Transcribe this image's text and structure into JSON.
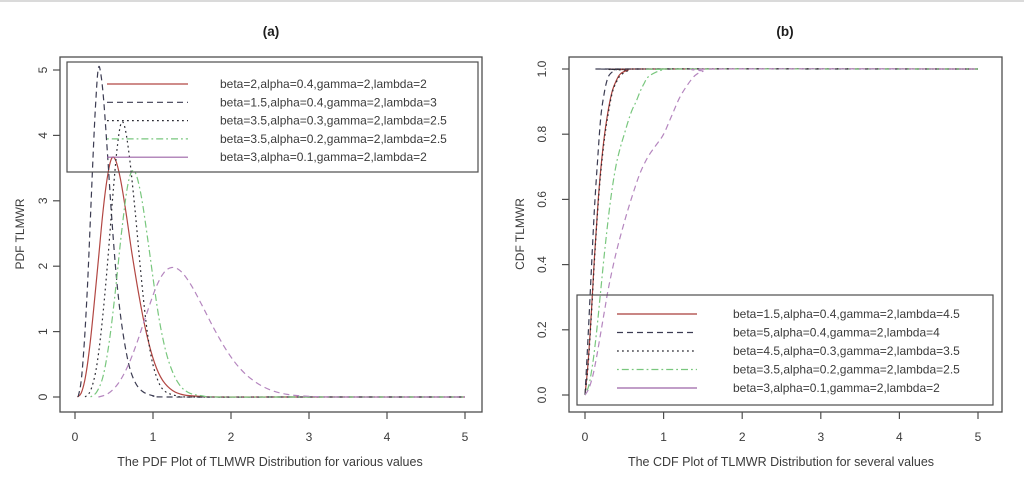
{
  "style": {
    "background": "#ffffff",
    "frame_color": "#4e4e4e",
    "text_color": "#3b3b3b",
    "title_color": "#1d1d1d",
    "top_strip_color": "#dadada"
  },
  "chart_data": [
    {
      "id": "pdf",
      "type": "line",
      "title": "(a)",
      "xlabel": "The PDF Plot of TLMWR Distribution for various values",
      "ylabel": "PDF TLMWR",
      "xlim": [
        0,
        5
      ],
      "ylim": [
        0,
        5.1
      ],
      "x_ticks": [
        0,
        1,
        2,
        3,
        4,
        5
      ],
      "x_tick_labels": [
        "0",
        "1",
        "2",
        "3",
        "4",
        "5"
      ],
      "y_ticks": [
        0,
        1,
        2,
        3,
        4,
        5
      ],
      "y_tick_labels": [
        "0",
        "1",
        "2",
        "3",
        "4",
        "5"
      ],
      "grid": false,
      "legend_position": "top",
      "series": [
        {
          "label": "beta=2,alpha=0.4,gamma=2,lambda=2",
          "color": "#b24743",
          "line_style": "solid",
          "points": [
            [
              0.03,
              0
            ],
            [
              0.08,
              0.06
            ],
            [
              0.13,
              0.28
            ],
            [
              0.18,
              0.68
            ],
            [
              0.24,
              1.35
            ],
            [
              0.3,
              2.1
            ],
            [
              0.36,
              2.85
            ],
            [
              0.42,
              3.4
            ],
            [
              0.47,
              3.65
            ],
            [
              0.52,
              3.62
            ],
            [
              0.58,
              3.35
            ],
            [
              0.65,
              2.85
            ],
            [
              0.73,
              2.2
            ],
            [
              0.82,
              1.55
            ],
            [
              0.92,
              0.95
            ],
            [
              1.02,
              0.52
            ],
            [
              1.12,
              0.26
            ],
            [
              1.25,
              0.1
            ],
            [
              1.4,
              0.03
            ],
            [
              1.6,
              0.01
            ],
            [
              1.85,
              0
            ],
            [
              3.0,
              0
            ],
            [
              5.0,
              0
            ]
          ]
        },
        {
          "label": "beta=1.5,alpha=0.4,gamma=2,lambda=3",
          "color": "#3c3c52",
          "line_style": "dashed",
          "points": [
            [
              0.04,
              0
            ],
            [
              0.08,
              0.25
            ],
            [
              0.12,
              0.85
            ],
            [
              0.16,
              1.7
            ],
            [
              0.2,
              2.8
            ],
            [
              0.24,
              3.9
            ],
            [
              0.27,
              4.6
            ],
            [
              0.3,
              5.03
            ],
            [
              0.33,
              4.95
            ],
            [
              0.37,
              4.5
            ],
            [
              0.42,
              3.65
            ],
            [
              0.47,
              2.75
            ],
            [
              0.53,
              1.85
            ],
            [
              0.6,
              1.1
            ],
            [
              0.68,
              0.55
            ],
            [
              0.76,
              0.25
            ],
            [
              0.86,
              0.09
            ],
            [
              1.0,
              0.02
            ],
            [
              1.2,
              0
            ],
            [
              3.0,
              0
            ],
            [
              5.0,
              0
            ]
          ]
        },
        {
          "label": "beta=3.5,alpha=0.3,gamma=2,lambda=2.5",
          "color": "#2b2b33",
          "line_style": "dotted",
          "points": [
            [
              0.13,
              0
            ],
            [
              0.2,
              0.1
            ],
            [
              0.27,
              0.42
            ],
            [
              0.34,
              1.05
            ],
            [
              0.41,
              1.95
            ],
            [
              0.48,
              3.0
            ],
            [
              0.54,
              3.8
            ],
            [
              0.59,
              4.18
            ],
            [
              0.64,
              4.12
            ],
            [
              0.7,
              3.65
            ],
            [
              0.77,
              2.85
            ],
            [
              0.84,
              1.95
            ],
            [
              0.91,
              1.15
            ],
            [
              0.98,
              0.6
            ],
            [
              1.06,
              0.26
            ],
            [
              1.15,
              0.09
            ],
            [
              1.3,
              0.02
            ],
            [
              1.5,
              0
            ],
            [
              3.0,
              0
            ],
            [
              5.0,
              0
            ]
          ]
        },
        {
          "label": "beta=3.5,alpha=0.2,gamma=2,lambda=2.5",
          "color": "#79c77e",
          "line_style": "dashdot",
          "points": [
            [
              0.2,
              0
            ],
            [
              0.28,
              0.08
            ],
            [
              0.36,
              0.32
            ],
            [
              0.44,
              0.85
            ],
            [
              0.52,
              1.65
            ],
            [
              0.6,
              2.55
            ],
            [
              0.67,
              3.2
            ],
            [
              0.73,
              3.45
            ],
            [
              0.79,
              3.38
            ],
            [
              0.86,
              3.0
            ],
            [
              0.94,
              2.35
            ],
            [
              1.02,
              1.65
            ],
            [
              1.1,
              1.05
            ],
            [
              1.2,
              0.55
            ],
            [
              1.32,
              0.22
            ],
            [
              1.45,
              0.07
            ],
            [
              1.62,
              0.02
            ],
            [
              1.85,
              0
            ],
            [
              3.0,
              0
            ],
            [
              5.0,
              0
            ]
          ]
        },
        {
          "label": "beta=3,alpha=0.1,gamma=2,lambda=2",
          "color": "#b586bf",
          "line_style": "dashed",
          "legend_line_style": "solid",
          "legend_color": "#9c63a6",
          "points": [
            [
              0.3,
              0
            ],
            [
              0.42,
              0.05
            ],
            [
              0.55,
              0.2
            ],
            [
              0.68,
              0.48
            ],
            [
              0.8,
              0.85
            ],
            [
              0.92,
              1.28
            ],
            [
              1.04,
              1.68
            ],
            [
              1.14,
              1.9
            ],
            [
              1.24,
              1.98
            ],
            [
              1.35,
              1.93
            ],
            [
              1.48,
              1.73
            ],
            [
              1.62,
              1.42
            ],
            [
              1.78,
              1.05
            ],
            [
              1.95,
              0.7
            ],
            [
              2.12,
              0.43
            ],
            [
              2.3,
              0.24
            ],
            [
              2.5,
              0.11
            ],
            [
              2.72,
              0.04
            ],
            [
              3.0,
              0.01
            ],
            [
              3.4,
              0
            ],
            [
              5.0,
              0
            ]
          ]
        }
      ]
    },
    {
      "id": "cdf",
      "type": "line",
      "title": "(b)",
      "xlabel": "The CDF Plot of TLMWR Distribution for several values",
      "ylabel": "CDF TLMWR",
      "xlim": [
        0,
        5
      ],
      "ylim": [
        0,
        1
      ],
      "x_ticks": [
        0,
        1,
        2,
        3,
        4,
        5
      ],
      "x_tick_labels": [
        "0",
        "1",
        "2",
        "3",
        "4",
        "5"
      ],
      "y_ticks": [
        0,
        0.2,
        0.4,
        0.6,
        0.8,
        1.0
      ],
      "y_tick_labels": [
        "0.0",
        "0.2",
        "0.4",
        "0.6",
        "0.8",
        "1.0"
      ],
      "grid": false,
      "legend_position": "bottom-right",
      "series": [
        {
          "label": "beta=1.5,alpha=0.4,gamma=2,lambda=4.5",
          "color": "#a93f3b",
          "line_style": "solid",
          "points": [
            [
              0,
              0
            ],
            [
              0.04,
              0.1
            ],
            [
              0.08,
              0.25
            ],
            [
              0.12,
              0.42
            ],
            [
              0.16,
              0.57
            ],
            [
              0.2,
              0.69
            ],
            [
              0.25,
              0.8
            ],
            [
              0.3,
              0.88
            ],
            [
              0.35,
              0.935
            ],
            [
              0.4,
              0.965
            ],
            [
              0.45,
              0.985
            ],
            [
              0.55,
              0.997
            ],
            [
              0.65,
              1
            ],
            [
              5,
              1
            ]
          ]
        },
        {
          "label": "beta=5,alpha=0.4,gamma=2,lambda=4",
          "color": "#3c3c52",
          "line_style": "dashed",
          "points": [
            [
              0,
              0
            ],
            [
              0.04,
              0.18
            ],
            [
              0.08,
              0.38
            ],
            [
              0.12,
              0.57
            ],
            [
              0.16,
              0.72
            ],
            [
              0.2,
              0.85
            ],
            [
              0.24,
              0.92
            ],
            [
              0.28,
              0.965
            ],
            [
              0.32,
              0.985
            ],
            [
              0.4,
              0.998
            ],
            [
              0.5,
              1
            ],
            [
              5,
              1
            ]
          ]
        },
        {
          "label": "beta=4.5,alpha=0.3,gamma=2,lambda=3.5",
          "color": "#2b2b33",
          "line_style": "dotted",
          "points": [
            [
              0,
              0
            ],
            [
              0.04,
              0.09
            ],
            [
              0.08,
              0.24
            ],
            [
              0.12,
              0.41
            ],
            [
              0.16,
              0.56
            ],
            [
              0.2,
              0.68
            ],
            [
              0.25,
              0.79
            ],
            [
              0.3,
              0.87
            ],
            [
              0.35,
              0.93
            ],
            [
              0.4,
              0.96
            ],
            [
              0.45,
              0.98
            ],
            [
              0.55,
              0.995
            ],
            [
              0.65,
              1
            ],
            [
              5,
              1
            ]
          ]
        },
        {
          "label": "beta=3.5,alpha=0.2,gamma=2,lambda=2.5",
          "color": "#79c77e",
          "line_style": "dashdot",
          "points": [
            [
              0,
              0
            ],
            [
              0.05,
              0.03
            ],
            [
              0.1,
              0.1
            ],
            [
              0.15,
              0.2
            ],
            [
              0.2,
              0.32
            ],
            [
              0.25,
              0.44
            ],
            [
              0.3,
              0.55
            ],
            [
              0.35,
              0.64
            ],
            [
              0.4,
              0.71
            ],
            [
              0.45,
              0.76
            ],
            [
              0.5,
              0.8
            ],
            [
              0.55,
              0.84
            ],
            [
              0.6,
              0.875
            ],
            [
              0.65,
              0.9
            ],
            [
              0.7,
              0.93
            ],
            [
              0.75,
              0.955
            ],
            [
              0.8,
              0.975
            ],
            [
              0.9,
              0.99
            ],
            [
              1.0,
              0.998
            ],
            [
              1.1,
              1
            ],
            [
              5,
              1
            ]
          ]
        },
        {
          "label": "beta=3,alpha=0.1,gamma=2,lambda=2",
          "color": "#b586bf",
          "line_style": "dashed",
          "legend_line_style": "solid",
          "legend_color": "#9c63a6",
          "points": [
            [
              0,
              0
            ],
            [
              0.05,
              0.02
            ],
            [
              0.1,
              0.06
            ],
            [
              0.15,
              0.12
            ],
            [
              0.2,
              0.19
            ],
            [
              0.25,
              0.26
            ],
            [
              0.3,
              0.33
            ],
            [
              0.4,
              0.44
            ],
            [
              0.5,
              0.53
            ],
            [
              0.6,
              0.61
            ],
            [
              0.7,
              0.68
            ],
            [
              0.8,
              0.73
            ],
            [
              0.9,
              0.765
            ],
            [
              1.0,
              0.8
            ],
            [
              1.1,
              0.855
            ],
            [
              1.2,
              0.91
            ],
            [
              1.3,
              0.95
            ],
            [
              1.4,
              0.98
            ],
            [
              1.5,
              0.993
            ],
            [
              1.65,
              1
            ],
            [
              5,
              1
            ]
          ]
        }
      ]
    }
  ]
}
